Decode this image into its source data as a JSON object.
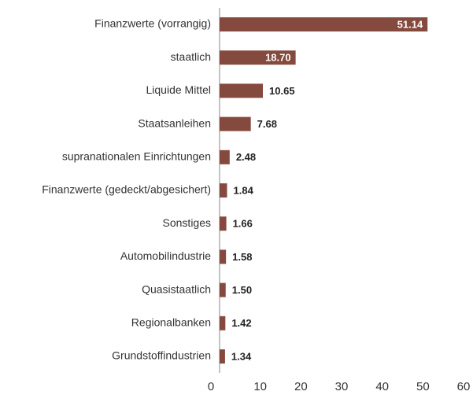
{
  "chart_data": {
    "type": "bar",
    "orientation": "horizontal",
    "categories": [
      "Finanzwerte (vorrangig)",
      "staatlich",
      "Liquide Mittel",
      "Staatsanleihen",
      "supranationalen Einrichtungen",
      "Finanzwerte (gedeckt/abgesichert)",
      "Sonstiges",
      "Automobilindustrie",
      "Quasistaatlich",
      "Regionalbanken",
      "Grundstoffindustrien"
    ],
    "values": [
      51.14,
      18.7,
      10.65,
      7.68,
      2.48,
      1.84,
      1.66,
      1.58,
      1.5,
      1.42,
      1.34
    ],
    "value_labels": [
      "51.14",
      "18.70",
      "10.65",
      "7.68",
      "2.48",
      "1.84",
      "1.66",
      "1.58",
      "1.50",
      "1.42",
      "1.34"
    ],
    "color": "#854a3e",
    "xlim": [
      0,
      60
    ],
    "xticks": [
      0,
      10,
      20,
      30,
      40,
      50,
      60
    ]
  }
}
